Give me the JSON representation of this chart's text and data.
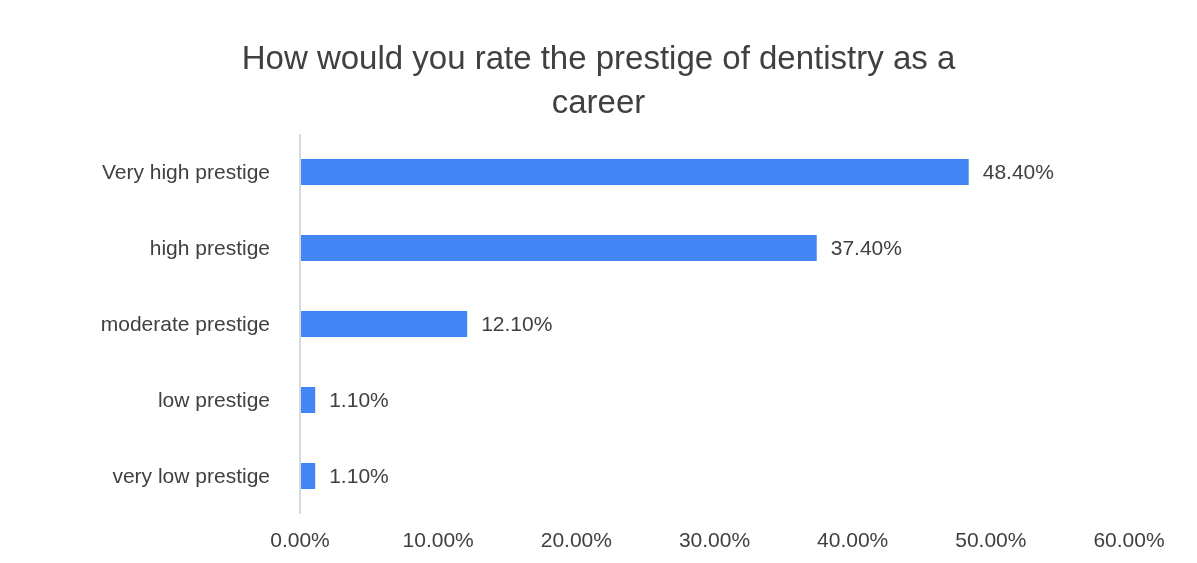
{
  "chart_data": {
    "type": "bar",
    "orientation": "horizontal",
    "title": "How would you rate the prestige of dentistry as a career",
    "categories": [
      "Very high prestige",
      "high prestige",
      "moderate prestige",
      "low prestige",
      "very low prestige"
    ],
    "values": [
      48.4,
      37.4,
      12.1,
      1.1,
      1.1
    ],
    "value_labels": [
      "48.40%",
      "37.40%",
      "12.10%",
      "1.10%",
      "1.10%"
    ],
    "color": "#4285f4",
    "xlim": [
      0,
      60
    ],
    "xticks": [
      {
        "value": 0,
        "label": "0.00%"
      },
      {
        "value": 10,
        "label": "10.00%"
      },
      {
        "value": 20,
        "label": "20.00%"
      },
      {
        "value": 30,
        "label": "30.00%"
      },
      {
        "value": 40,
        "label": "40.00%"
      },
      {
        "value": 50,
        "label": "50.00%"
      },
      {
        "value": 60,
        "label": "60.00%"
      }
    ],
    "grid": false
  }
}
